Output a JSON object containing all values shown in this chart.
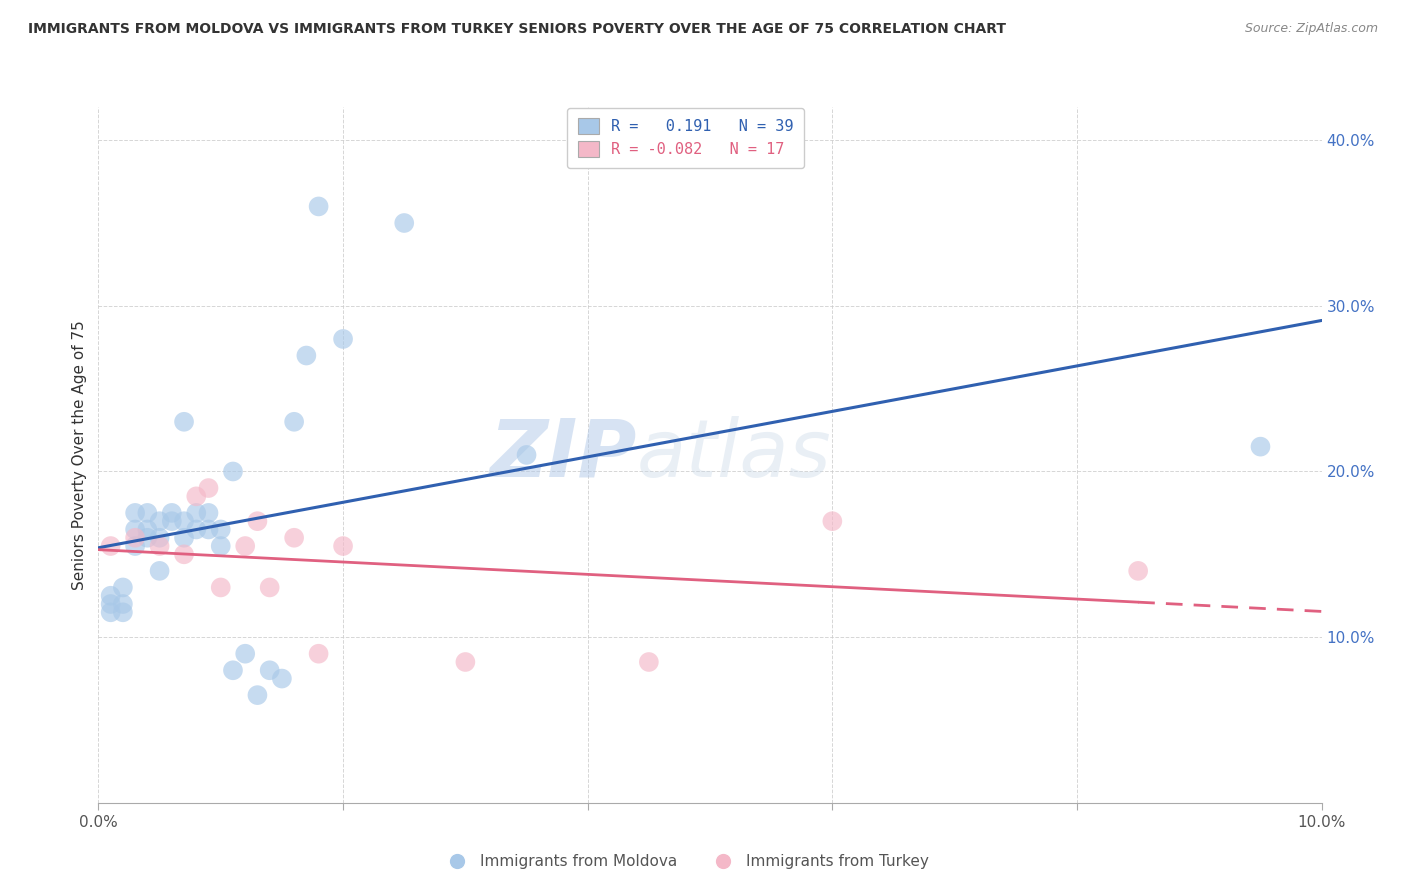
{
  "title": "IMMIGRANTS FROM MOLDOVA VS IMMIGRANTS FROM TURKEY SENIORS POVERTY OVER THE AGE OF 75 CORRELATION CHART",
  "source": "Source: ZipAtlas.com",
  "ylabel": "Seniors Poverty Over the Age of 75",
  "xlim": [
    0.0,
    0.1
  ],
  "ylim": [
    0.0,
    0.42
  ],
  "r_moldova": 0.191,
  "n_moldova": 39,
  "r_turkey": -0.082,
  "n_turkey": 17,
  "moldova_color": "#a8c8e8",
  "turkey_color": "#f4b8c8",
  "moldova_line_color": "#3060b0",
  "turkey_line_color": "#e06080",
  "background_color": "#ffffff",
  "watermark_zip": "ZIP",
  "watermark_atlas": "atlas",
  "moldova_x": [
    0.001,
    0.001,
    0.001,
    0.002,
    0.002,
    0.002,
    0.003,
    0.003,
    0.003,
    0.004,
    0.004,
    0.004,
    0.005,
    0.005,
    0.005,
    0.006,
    0.006,
    0.007,
    0.007,
    0.007,
    0.008,
    0.008,
    0.009,
    0.009,
    0.01,
    0.01,
    0.011,
    0.011,
    0.012,
    0.013,
    0.014,
    0.015,
    0.016,
    0.017,
    0.018,
    0.02,
    0.025,
    0.035,
    0.095
  ],
  "moldova_y": [
    0.115,
    0.12,
    0.125,
    0.115,
    0.12,
    0.13,
    0.155,
    0.165,
    0.175,
    0.16,
    0.165,
    0.175,
    0.14,
    0.16,
    0.17,
    0.17,
    0.175,
    0.16,
    0.17,
    0.23,
    0.165,
    0.175,
    0.165,
    0.175,
    0.155,
    0.165,
    0.2,
    0.08,
    0.09,
    0.065,
    0.08,
    0.075,
    0.23,
    0.27,
    0.36,
    0.28,
    0.35,
    0.21,
    0.215
  ],
  "turkey_x": [
    0.001,
    0.003,
    0.005,
    0.007,
    0.008,
    0.009,
    0.01,
    0.012,
    0.013,
    0.014,
    0.016,
    0.018,
    0.02,
    0.03,
    0.045,
    0.06,
    0.085
  ],
  "turkey_y": [
    0.155,
    0.16,
    0.155,
    0.15,
    0.185,
    0.19,
    0.13,
    0.155,
    0.17,
    0.13,
    0.16,
    0.09,
    0.155,
    0.085,
    0.085,
    0.17,
    0.14
  ]
}
